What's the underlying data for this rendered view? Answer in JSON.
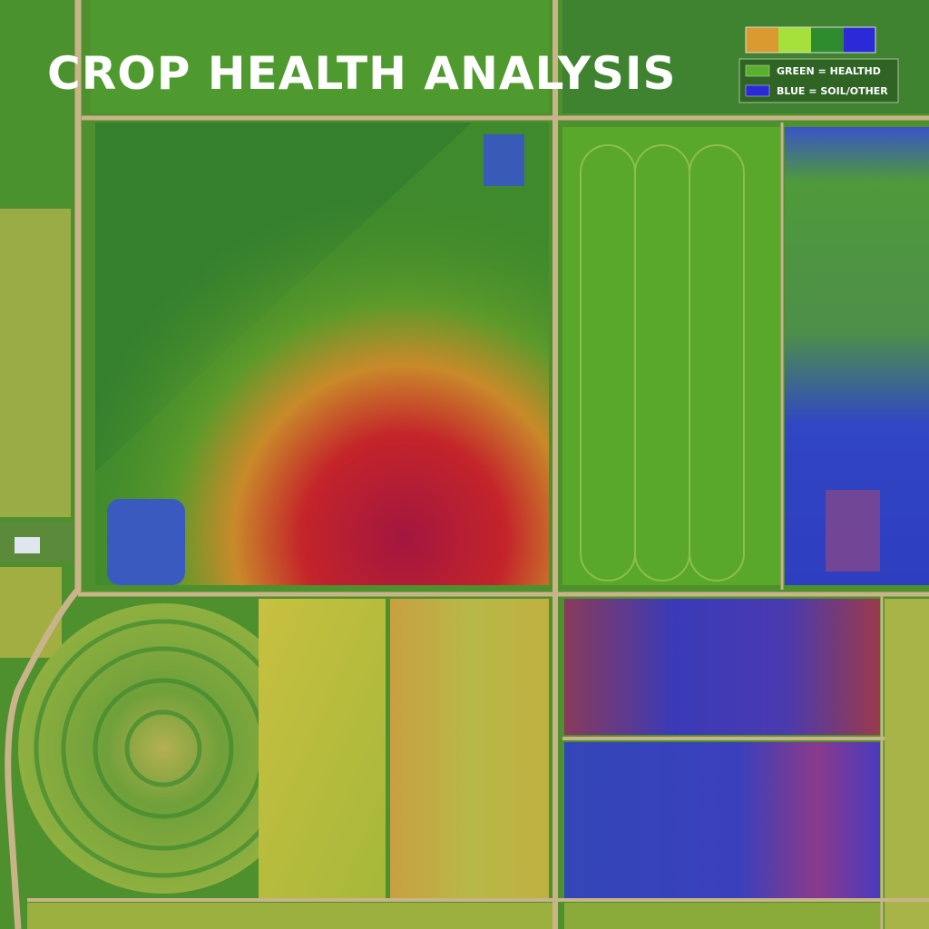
{
  "header": {
    "title": "CROP HEALTH ANALYSIS"
  },
  "legend": {
    "items": [
      {
        "label": "GREEN = HEALTHD"
      },
      {
        "label": "BLUE = SOIL/OTHER"
      }
    ]
  }
}
